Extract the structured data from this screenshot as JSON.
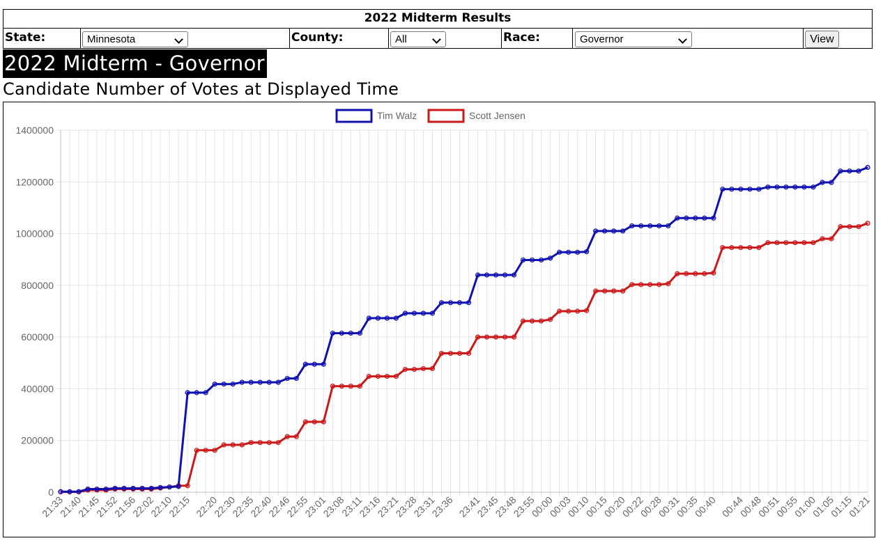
{
  "header": {
    "title": "2022 Midterm Results",
    "state_label": "State:",
    "state_value": "Minnesota",
    "county_label": "County:",
    "county_value": "All",
    "race_label": "Race:",
    "race_value": "Governor",
    "view_label": "View"
  },
  "page": {
    "title": "2022 Midterm - Governor",
    "subtitle": "Candidate Number of Votes at Displayed Time"
  },
  "chart_data": {
    "type": "line",
    "title": "",
    "xlabel": "",
    "ylabel": "",
    "ylim": [
      0,
      1400000
    ],
    "yticks": [
      0,
      200000,
      400000,
      600000,
      800000,
      1000000,
      1200000,
      1400000
    ],
    "grid": true,
    "legend": "top-center",
    "x_tick_labels": [
      "21:33",
      "21:40",
      "21:45",
      "21:52",
      "21:56",
      "22:02",
      "22:10",
      "22:15",
      "22:20",
      "22:30",
      "22:35",
      "22:40",
      "22:46",
      "22:55",
      "23:01",
      "23:08",
      "23:11",
      "23:16",
      "23:21",
      "23:28",
      "23:31",
      "23:36",
      "23:41",
      "23:45",
      "23:48",
      "23:55",
      "00:00",
      "00:03",
      "00:10",
      "00:15",
      "00:20",
      "00:22",
      "00:28",
      "00:31",
      "00:35",
      "00:40",
      "00:44",
      "00:48",
      "00:51",
      "00:55",
      "01:00",
      "01:05",
      "01:15",
      "01:21"
    ],
    "series": [
      {
        "name": "Tim Walz",
        "color": "#1010b0",
        "values": [
          2000,
          2000,
          2000,
          12000,
          12000,
          12000,
          15000,
          15000,
          15000,
          15000,
          15000,
          18000,
          20000,
          22000,
          385000,
          385000,
          385000,
          418000,
          418000,
          418000,
          425000,
          425000,
          425000,
          425000,
          425000,
          440000,
          440000,
          495000,
          495000,
          495000,
          615000,
          615000,
          615000,
          615000,
          673000,
          673000,
          673000,
          673000,
          692000,
          692000,
          692000,
          692000,
          733000,
          733000,
          733000,
          733000,
          840000,
          840000,
          840000,
          840000,
          840000,
          898000,
          898000,
          898000,
          905000,
          928000,
          928000,
          928000,
          930000,
          1010000,
          1010000,
          1010000,
          1010000,
          1030000,
          1030000,
          1030000,
          1030000,
          1030000,
          1060000,
          1060000,
          1060000,
          1060000,
          1060000,
          1172000,
          1172000,
          1172000,
          1172000,
          1172000,
          1180000,
          1180000,
          1180000,
          1180000,
          1180000,
          1180000,
          1198000,
          1198000,
          1242000,
          1242000,
          1242000,
          1256000
        ]
      },
      {
        "name": "Scott Jensen",
        "color": "#cc1818",
        "values": [
          1000,
          1000,
          1000,
          8000,
          8000,
          8000,
          12000,
          12000,
          12000,
          12000,
          12000,
          16000,
          20000,
          25000,
          25000,
          162000,
          162000,
          162000,
          183000,
          183000,
          183000,
          192000,
          192000,
          192000,
          192000,
          215000,
          215000,
          272000,
          272000,
          272000,
          410000,
          410000,
          410000,
          410000,
          448000,
          448000,
          448000,
          448000,
          475000,
          475000,
          478000,
          478000,
          537000,
          537000,
          537000,
          537000,
          600000,
          600000,
          600000,
          600000,
          600000,
          662000,
          662000,
          662000,
          668000,
          700000,
          700000,
          700000,
          702000,
          778000,
          778000,
          778000,
          778000,
          803000,
          803000,
          803000,
          803000,
          806000,
          845000,
          845000,
          845000,
          845000,
          848000,
          946000,
          946000,
          946000,
          946000,
          946000,
          965000,
          965000,
          965000,
          965000,
          965000,
          965000,
          980000,
          980000,
          1027000,
          1027000,
          1027000,
          1040000
        ]
      }
    ]
  }
}
